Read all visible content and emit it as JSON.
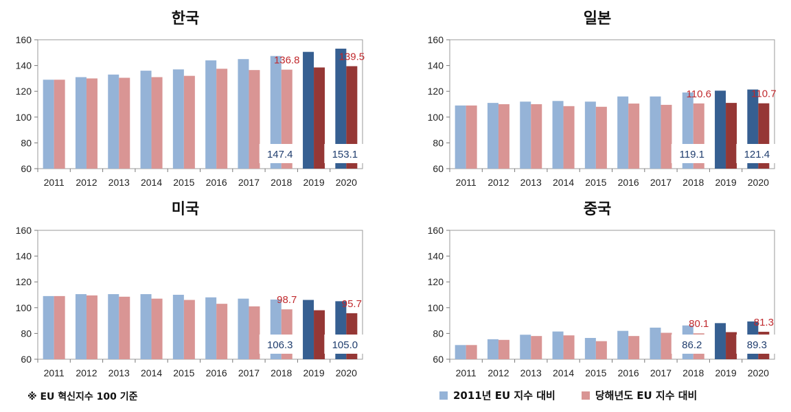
{
  "colors": {
    "base2011": "#95b3d7",
    "current": "#d99594",
    "base2011_dark": "#365f91",
    "current_dark": "#953735",
    "annot_red": "#c0282c",
    "annot_blue": "#1f3d6e"
  },
  "footnote": "※ EU 혁신지수 100 기준",
  "legend": {
    "base2011": "2011년 EU 지수 대비",
    "current": "당해년도 EU 지수 대비"
  },
  "chart_data": [
    {
      "type": "bar",
      "title": "한국",
      "categories": [
        "2011",
        "2012",
        "2013",
        "2014",
        "2015",
        "2016",
        "2017",
        "2018",
        "2019",
        "2020"
      ],
      "series": [
        {
          "name": "2011년 EU 지수 대비",
          "values": [
            129,
            131,
            133,
            136,
            137,
            144,
            145,
            147.4,
            150.6,
            153.1
          ]
        },
        {
          "name": "당해년도 EU 지수 대비",
          "values": [
            129,
            130,
            130.5,
            131,
            132,
            137.5,
            136.5,
            136.8,
            138.5,
            139.5
          ]
        }
      ],
      "ylim": [
        60,
        160
      ],
      "yticks": [
        60,
        80,
        100,
        120,
        140,
        160
      ],
      "labels_red": [
        "136.8",
        "139.5"
      ],
      "labels_blue": [
        "147.4",
        "153.1"
      ]
    },
    {
      "type": "bar",
      "title": "일본",
      "categories": [
        "2011",
        "2012",
        "2013",
        "2014",
        "2015",
        "2016",
        "2017",
        "2018",
        "2019",
        "2020"
      ],
      "series": [
        {
          "name": "2011년 EU 지수 대비",
          "values": [
            109,
            111,
            112,
            112.5,
            112,
            116,
            116,
            119.1,
            120.5,
            121.4
          ]
        },
        {
          "name": "당해년도 EU 지수 대비",
          "values": [
            109,
            110,
            110,
            108.5,
            108,
            110.5,
            109.5,
            110.6,
            111,
            110.7
          ]
        }
      ],
      "ylim": [
        60,
        160
      ],
      "yticks": [
        60,
        80,
        100,
        120,
        140,
        160
      ],
      "labels_red": [
        "110.6",
        "110.7"
      ],
      "labels_blue": [
        "119.1",
        "121.4"
      ]
    },
    {
      "type": "bar",
      "title": "미국",
      "categories": [
        "2011",
        "2012",
        "2013",
        "2014",
        "2015",
        "2016",
        "2017",
        "2018",
        "2019",
        "2020"
      ],
      "series": [
        {
          "name": "2011년 EU 지수 대비",
          "values": [
            109,
            110.5,
            110.5,
            110.5,
            110,
            108,
            107,
            106.3,
            106,
            105.0
          ]
        },
        {
          "name": "당해년도 EU 지수 대비",
          "values": [
            109,
            109.5,
            108.5,
            107,
            106,
            103,
            101,
            98.7,
            98,
            95.7
          ]
        }
      ],
      "ylim": [
        60,
        160
      ],
      "yticks": [
        60,
        80,
        100,
        120,
        140,
        160
      ],
      "labels_red": [
        "98.7",
        "95.7"
      ],
      "labels_blue": [
        "106.3",
        "105.0"
      ]
    },
    {
      "type": "bar",
      "title": "중국",
      "categories": [
        "2011",
        "2012",
        "2013",
        "2014",
        "2015",
        "2016",
        "2017",
        "2018",
        "2019",
        "2020"
      ],
      "series": [
        {
          "name": "2011년 EU 지수 대비",
          "values": [
            71,
            75.5,
            79,
            81.5,
            76.5,
            82,
            84.5,
            86.2,
            88,
            89.3
          ]
        },
        {
          "name": "당해년도 EU 지수 대비",
          "values": [
            71,
            75,
            78,
            78.5,
            74,
            78,
            80.5,
            80.1,
            81,
            81.3
          ]
        }
      ],
      "ylim": [
        60,
        160
      ],
      "yticks": [
        60,
        80,
        100,
        120,
        140,
        160
      ],
      "labels_red": [
        "80.1",
        "81.3"
      ],
      "labels_blue": [
        "86.2",
        "89.3"
      ]
    }
  ]
}
